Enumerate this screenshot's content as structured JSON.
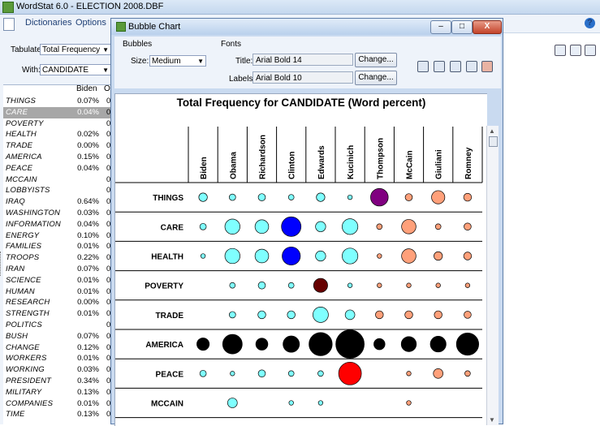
{
  "app": {
    "title": "WordStat 6.0 - ELECTION 2008.DBF",
    "menu": [
      "Dictionaries",
      "Options"
    ],
    "help_label": "?"
  },
  "left_panel": {
    "tabulate_label": "Tabulate:",
    "tabulate_value": "Total Frequency",
    "with_label": "With:",
    "with_value": "CANDIDATE",
    "header_col1": "Biden",
    "header_col2": "Ot",
    "rows": [
      {
        "word": "THINGS",
        "value": "0.07%",
        "other": "0"
      },
      {
        "word": "CARE",
        "value": "0.04%",
        "other": "0",
        "selected": true
      },
      {
        "word": "POVERTY",
        "value": "",
        "other": "0"
      },
      {
        "word": "HEALTH",
        "value": "0.02%",
        "other": "0"
      },
      {
        "word": "TRADE",
        "value": "0.00%",
        "other": "0"
      },
      {
        "word": "AMERICA",
        "value": "0.15%",
        "other": "0"
      },
      {
        "word": "PEACE",
        "value": "0.04%",
        "other": "0"
      },
      {
        "word": "MCCAIN",
        "value": "",
        "other": "0"
      },
      {
        "word": "LOBBYISTS",
        "value": "",
        "other": "0"
      },
      {
        "word": "IRAQ",
        "value": "0.64%",
        "other": "0"
      },
      {
        "word": "WASHINGTON",
        "value": "0.03%",
        "other": "0"
      },
      {
        "word": "INFORMATION",
        "value": "0.04%",
        "other": "0"
      },
      {
        "word": "ENERGY",
        "value": "0.10%",
        "other": "0"
      },
      {
        "word": "FAMILIES",
        "value": "0.01%",
        "other": "0"
      },
      {
        "word": "TROOPS",
        "value": "0.22%",
        "other": "0"
      },
      {
        "word": "IRAN",
        "value": "0.07%",
        "other": "0"
      },
      {
        "word": "SCIENCE",
        "value": "0.01%",
        "other": "0"
      },
      {
        "word": "HUMAN",
        "value": "0.01%",
        "other": "0"
      },
      {
        "word": "RESEARCH",
        "value": "0.00%",
        "other": "0"
      },
      {
        "word": "STRENGTH",
        "value": "0.01%",
        "other": "0"
      },
      {
        "word": "POLITICS",
        "value": "",
        "other": "0"
      },
      {
        "word": "BUSH",
        "value": "0.07%",
        "other": "0"
      },
      {
        "word": "CHANGE",
        "value": "0.12%",
        "other": "0"
      },
      {
        "word": "WORKERS",
        "value": "0.01%",
        "other": "0"
      },
      {
        "word": "WORKING",
        "value": "0.03%",
        "other": "0"
      },
      {
        "word": "PRESIDENT",
        "value": "0.34%",
        "other": "0"
      },
      {
        "word": "MILITARY",
        "value": "0.13%",
        "other": "0"
      },
      {
        "word": "COMPANIES",
        "value": "0.01%",
        "other": "0"
      },
      {
        "word": "TIME",
        "value": "0.13%",
        "other": "0"
      }
    ]
  },
  "dialog": {
    "title": "Bubble Chart",
    "bubbles_group": "Bubbles",
    "size_label": "Size:",
    "size_value": "Medium",
    "fonts_group": "Fonts",
    "title_font_label": "Title:",
    "title_font_value": "Arial Bold 14",
    "labels_font_label": "Labels:",
    "labels_font_value": "Arial Bold 10",
    "change_label": "Change...",
    "minimize_label": "–",
    "maximize_label": "□",
    "close_label": "X"
  },
  "chart_data": {
    "type": "bubble",
    "title": "Total Frequency for CANDIDATE (Word percent)",
    "columns": [
      "Biden",
      "Obama",
      "Richardson",
      "Clinton",
      "Edwards",
      "Kucinich",
      "Thompson",
      "McCain",
      "Giuliani",
      "Romney"
    ],
    "rows": [
      {
        "label": "THINGS",
        "values": [
          0.07,
          0.04,
          0.05,
          0.03,
          0.07,
          0.02,
          0.3,
          0.05,
          0.17,
          0.06
        ],
        "colors": [
          "#7fffff",
          "#7fffff",
          "#7fffff",
          "#7fffff",
          "#7fffff",
          "#7fffff",
          "#800080",
          "#ffa07a",
          "#ffa07a",
          "#ffa07a"
        ]
      },
      {
        "label": "CARE",
        "values": [
          0.04,
          0.22,
          0.18,
          0.37,
          0.1,
          0.24,
          0.03,
          0.2,
          0.03,
          0.05
        ],
        "colors": [
          "#7fffff",
          "#7fffff",
          "#7fffff",
          "#0000ff",
          "#7fffff",
          "#7fffff",
          "#ffa07a",
          "#ffa07a",
          "#ffa07a",
          "#ffa07a"
        ]
      },
      {
        "label": "HEALTH",
        "values": [
          0.02,
          0.22,
          0.18,
          0.32,
          0.1,
          0.24,
          0.02,
          0.2,
          0.07,
          0.06
        ],
        "colors": [
          "#7fffff",
          "#7fffff",
          "#7fffff",
          "#0000ff",
          "#7fffff",
          "#7fffff",
          "#ffa07a",
          "#ffa07a",
          "#ffa07a",
          "#ffa07a"
        ]
      },
      {
        "label": "POVERTY",
        "values": [
          0,
          0.03,
          0.05,
          0.03,
          0.19,
          0.02,
          0.02,
          0.02,
          0.02,
          0.02
        ],
        "colors": [
          "#7fffff",
          "#7fffff",
          "#7fffff",
          "#7fffff",
          "#660000",
          "#7fffff",
          "#ffa07a",
          "#ffa07a",
          "#ffa07a",
          "#ffa07a"
        ]
      },
      {
        "label": "TRADE",
        "values": [
          0,
          0.04,
          0.06,
          0.06,
          0.23,
          0.09,
          0.06,
          0.06,
          0.06,
          0.05
        ],
        "colors": [
          "#7fffff",
          "#7fffff",
          "#7fffff",
          "#7fffff",
          "#7fffff",
          "#7fffff",
          "#ffa07a",
          "#ffa07a",
          "#ffa07a",
          "#ffa07a"
        ]
      },
      {
        "label": "AMERICA",
        "values": [
          0.15,
          0.37,
          0.14,
          0.26,
          0.52,
          0.78,
          0.12,
          0.22,
          0.24,
          0.48
        ],
        "colors": [
          "#000000",
          "#000000",
          "#000000",
          "#000000",
          "#000000",
          "#000000",
          "#000000",
          "#000000",
          "#000000",
          "#000000"
        ]
      },
      {
        "label": "PEACE",
        "values": [
          0.04,
          0.02,
          0.05,
          0.03,
          0.03,
          0.5,
          0.0,
          0.02,
          0.09,
          0.03
        ],
        "colors": [
          "#7fffff",
          "#7fffff",
          "#7fffff",
          "#7fffff",
          "#7fffff",
          "#ff0000",
          "#ffa07a",
          "#ffa07a",
          "#ffa07a",
          "#ffa07a"
        ]
      },
      {
        "label": "MCCAIN",
        "values": [
          0,
          0.09,
          0,
          0.02,
          0.02,
          0,
          0,
          0.02,
          0,
          0
        ],
        "colors": [
          "#7fffff",
          "#7fffff",
          "#7fffff",
          "#7fffff",
          "#7fffff",
          "#7fffff",
          "#ffa07a",
          "#ffa07a",
          "#ffa07a",
          "#ffa07a"
        ]
      }
    ]
  }
}
